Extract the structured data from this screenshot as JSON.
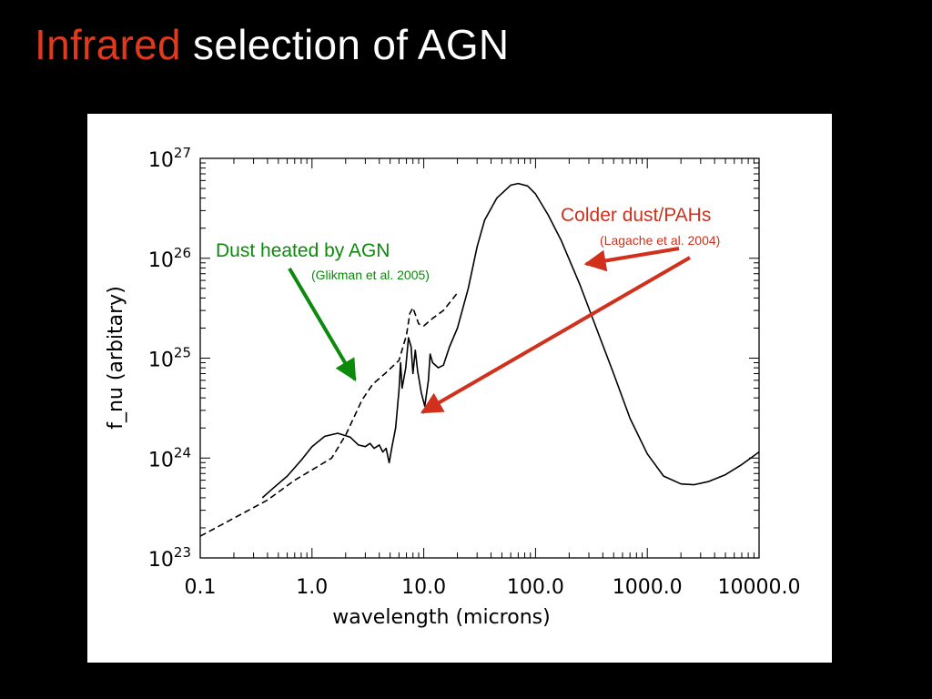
{
  "title": {
    "highlight": "Infrared",
    "rest": " selection of AGN",
    "highlight_color": "#e03a1e",
    "text_color": "#ffffff"
  },
  "colors": {
    "background": "#000000",
    "panel": "#ffffff",
    "agn_annotation": "#0b8a0b",
    "dust_annotation": "#d0301c",
    "curve": "#000000"
  },
  "chart_data": {
    "type": "line",
    "xscale": "log",
    "yscale": "log",
    "xlim": [
      0.1,
      10000
    ],
    "ylim": [
      1e+23,
      1e+27
    ],
    "xlabel": "wavelength (microns)",
    "ylabel": "f_nu (arbitary)",
    "x_ticks": [
      {
        "value": 0.1,
        "label": "0.1"
      },
      {
        "value": 1,
        "label": "1.0"
      },
      {
        "value": 10,
        "label": "10.0"
      },
      {
        "value": 100,
        "label": "100.0"
      },
      {
        "value": 1000,
        "label": "1000.0"
      },
      {
        "value": 10000,
        "label": "10000.0"
      }
    ],
    "y_ticks": [
      {
        "value": 1e+23,
        "base": "10",
        "exp": "23"
      },
      {
        "value": 1e+24,
        "base": "10",
        "exp": "24"
      },
      {
        "value": 1e+25,
        "base": "10",
        "exp": "25"
      },
      {
        "value": 1e+26,
        "base": "10",
        "exp": "26"
      },
      {
        "value": 1e+27,
        "base": "10",
        "exp": "27"
      }
    ],
    "series": [
      {
        "style": "solid",
        "points": [
          [
            0.36,
            4e+23
          ],
          [
            0.45,
            5e+23
          ],
          [
            0.6,
            6.6e+23
          ],
          [
            0.8,
            9.5e+23
          ],
          [
            1.0,
            1.3e+24
          ],
          [
            1.3,
            1.65e+24
          ],
          [
            1.7,
            1.77e+24
          ],
          [
            2.2,
            1.62e+24
          ],
          [
            2.6,
            1.35e+24
          ],
          [
            3.0,
            1.3e+24
          ],
          [
            3.3,
            1.4e+24
          ],
          [
            3.6,
            1.25e+24
          ],
          [
            4.0,
            1.35e+24
          ],
          [
            4.3,
            1.15e+24
          ],
          [
            4.6,
            1.25e+24
          ],
          [
            4.9,
            9e+23
          ],
          [
            5.2,
            1.3e+24
          ],
          [
            5.6,
            2e+24
          ],
          [
            6.0,
            4.8e+24
          ],
          [
            6.2,
            9e+24
          ],
          [
            6.4,
            5e+24
          ],
          [
            6.9,
            8e+24
          ],
          [
            7.3,
            1.6e+25
          ],
          [
            7.7,
            1.3e+25
          ],
          [
            8.0,
            7e+24
          ],
          [
            8.4,
            1.2e+25
          ],
          [
            8.8,
            7.5e+24
          ],
          [
            9.5,
            4.5e+24
          ],
          [
            10.2,
            3.3e+24
          ],
          [
            11.0,
            6e+24
          ],
          [
            11.4,
            1.1e+25
          ],
          [
            12.0,
            9e+24
          ],
          [
            13.5,
            8e+24
          ],
          [
            15.0,
            8.5e+24
          ],
          [
            17.0,
            1.3e+25
          ],
          [
            20.0,
            2e+25
          ],
          [
            25.0,
            5e+25
          ],
          [
            30.0,
            1.3e+26
          ],
          [
            35.0,
            2.4e+26
          ],
          [
            45.0,
            4e+26
          ],
          [
            60.0,
            5.4e+26
          ],
          [
            70.0,
            5.6e+26
          ],
          [
            85.0,
            5.3e+26
          ],
          [
            100.0,
            4.4e+26
          ],
          [
            130.0,
            2.7e+26
          ],
          [
            170.0,
            1.5e+26
          ],
          [
            250.0,
            5.4e+25
          ],
          [
            350.0,
            2e+25
          ],
          [
            500.0,
            7e+24
          ],
          [
            700.0,
            2.5e+24
          ],
          [
            1000.0,
            1.1e+24
          ],
          [
            1400.0,
            6.6e+23
          ],
          [
            2000.0,
            5.5e+23
          ],
          [
            2600.0,
            5.4e+23
          ],
          [
            3500.0,
            5.8e+23
          ],
          [
            5000.0,
            6.8e+23
          ],
          [
            7000.0,
            8.6e+23
          ],
          [
            10000.0,
            1.15e+24
          ]
        ]
      },
      {
        "style": "dashed",
        "points": [
          [
            0.1,
            1.65e+23
          ],
          [
            0.2,
            2.5e+23
          ],
          [
            0.4,
            3.8e+23
          ],
          [
            0.7,
            6e+23
          ],
          [
            1.0,
            7.6e+23
          ],
          [
            1.5,
            1e+24
          ],
          [
            2.0,
            1.7e+24
          ],
          [
            2.8,
            3.8e+24
          ],
          [
            3.5,
            5.5e+24
          ],
          [
            4.5,
            7e+24
          ],
          [
            6.0,
            9.5e+24
          ],
          [
            7.0,
            1.7e+25
          ],
          [
            7.5,
            2.8e+25
          ],
          [
            8.0,
            3.2e+25
          ],
          [
            9.0,
            2.2e+25
          ],
          [
            10.0,
            2.1e+25
          ],
          [
            12.0,
            2.5e+25
          ],
          [
            15.0,
            3e+25
          ],
          [
            20.0,
            4.5e+25
          ]
        ]
      }
    ],
    "annotations": [
      {
        "id": "agn",
        "text": "Dust heated by AGN",
        "ref": "(Glikman et al. 2005)",
        "color": "#0b8a0b"
      },
      {
        "id": "dust",
        "text": "Colder dust/PAHs",
        "ref": "(Lagache et al. 2004)",
        "color": "#d0301c"
      }
    ]
  }
}
